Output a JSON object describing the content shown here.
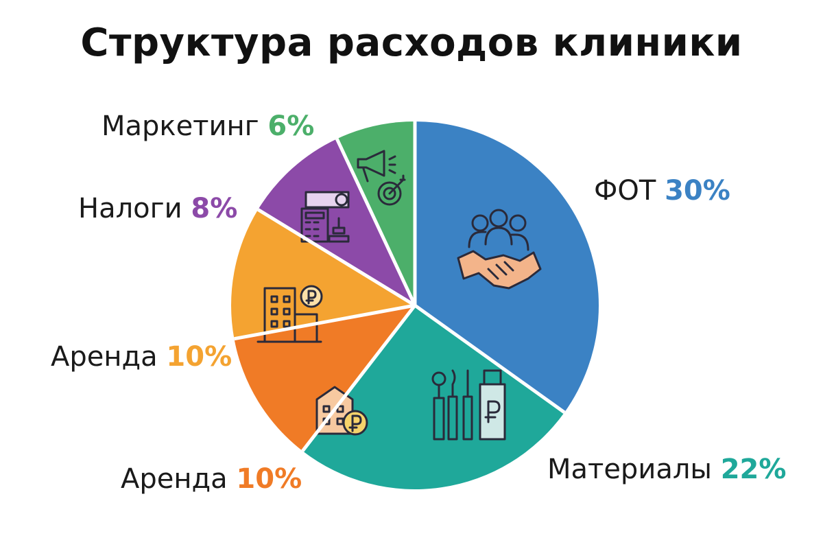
{
  "chart_data": {
    "type": "pie",
    "title": "Структура расходов клиники",
    "slices": [
      {
        "label": "ФОТ",
        "value_label": "30%",
        "value": 30,
        "color": "#3b82c4",
        "icon": "team-handshake-icon"
      },
      {
        "label": "Материалы",
        "value_label": "22%",
        "value": 22,
        "color": "#1fa89a",
        "icon": "dental-tools-icon"
      },
      {
        "label": "Аренда",
        "value_label": "10%",
        "value": 10,
        "color": "#f07b26",
        "icon": "building-ruble-icon"
      },
      {
        "label": "Аренда",
        "value_label": "10%",
        "value": 10,
        "color": "#f4a331",
        "icon": "office-ruble-icon"
      },
      {
        "label": "Налоги",
        "value_label": "8%",
        "value": 8,
        "color": "#8c4aa8",
        "icon": "calculator-stamp-icon"
      },
      {
        "label": "Маркетинг",
        "value_label": "6%",
        "value": 6,
        "color": "#4caf6a",
        "icon": "megaphone-target-icon"
      }
    ],
    "legend": "none"
  }
}
